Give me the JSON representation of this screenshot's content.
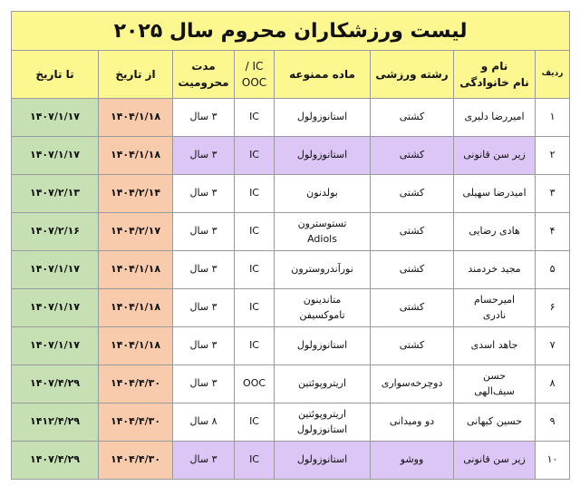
{
  "title": "لیست ورزشکاران محروم سال ۲۰۲۵",
  "headers": {
    "row_no": "ردیف",
    "name": "نام و\nنام خانوادگی",
    "sport": "رشته ورزشی",
    "substance": "ماده ممنوعه",
    "ic_ooc": "IC /\nOOC",
    "duration": "مدت\nمحرومیت",
    "from_date": "از تاریخ",
    "to_date": "تا تاریخ"
  },
  "colors": {
    "title_bg": "#fdf78f",
    "to_date_bg": "#c6e0b4",
    "from_date_bg": "#f8cbad",
    "highlight_bg": "#dcc6f5"
  },
  "rows": [
    {
      "no": "۱",
      "name": "امیررضا دلیری",
      "sport": "کشتی",
      "substance": "استانوزولول",
      "ic": "IC",
      "duration": "۳ سال",
      "from": "۱۴۰۴/۱/۱۸",
      "to": "۱۴۰۷/۱/۱۷",
      "highlight": false
    },
    {
      "no": "۲",
      "name": "زیر سن قانونی",
      "sport": "کشتی",
      "substance": "استانوزولول",
      "ic": "IC",
      "duration": "۳ سال",
      "from": "۱۴۰۴/۱/۱۸",
      "to": "۱۴۰۷/۱/۱۷",
      "highlight": true
    },
    {
      "no": "۳",
      "name": "امیدرضا سهیلی",
      "sport": "کشتی",
      "substance": "بولدنون",
      "ic": "IC",
      "duration": "۳ سال",
      "from": "۱۴۰۴/۲/۱۴",
      "to": "۱۴۰۷/۲/۱۳",
      "highlight": false
    },
    {
      "no": "۴",
      "name": "هادی رضایی",
      "sport": "کشتی",
      "substance": "تستوسترون\nAdiols",
      "ic": "IC",
      "duration": "۳ سال",
      "from": "۱۴۰۴/۲/۱۷",
      "to": "۱۴۰۷/۲/۱۶",
      "highlight": false
    },
    {
      "no": "۵",
      "name": "مجید خردمند",
      "sport": "کشتی",
      "substance": "نورآندروسترون",
      "ic": "IC",
      "duration": "۳ سال",
      "from": "۱۴۰۴/۱/۱۸",
      "to": "۱۴۰۷/۱/۱۷",
      "highlight": false
    },
    {
      "no": "۶",
      "name": "امیرحسام\nنادری",
      "sport": "کشتی",
      "substance": "متاندینون\nتاموکسیفن",
      "ic": "IC",
      "duration": "۳ سال",
      "from": "۱۴۰۴/۱/۱۸",
      "to": "۱۴۰۷/۱/۱۷",
      "highlight": false
    },
    {
      "no": "۷",
      "name": "جاهد اسدی",
      "sport": "کشتی",
      "substance": "استانوزولول",
      "ic": "IC",
      "duration": "۳ سال",
      "from": "۱۴۰۴/۱/۱۸",
      "to": "۱۴۰۷/۱/۱۷",
      "highlight": false
    },
    {
      "no": "۸",
      "name": "حسن\nسیف‌الهی",
      "sport": "دوچرخه‌سواری",
      "substance": "اریتروپوئتین",
      "ic": "OOC",
      "duration": "۳ سال",
      "from": "۱۴۰۴/۴/۳۰",
      "to": "۱۴۰۷/۴/۲۹",
      "highlight": false
    },
    {
      "no": "۹",
      "name": "حسین کیهانی",
      "sport": "دو ومیدانی",
      "substance": "اریتروپوئتین\nاستانوزولول",
      "ic": "IC",
      "duration": "۸ سال",
      "from": "۱۴۰۴/۴/۳۰",
      "to": "۱۴۱۲/۴/۲۹",
      "highlight": false
    },
    {
      "no": "۱۰",
      "name": "زیر سن قانونی",
      "sport": "ووشو",
      "substance": "استانوزولول",
      "ic": "IC",
      "duration": "۳ سال",
      "from": "۱۴۰۴/۴/۳۰",
      "to": "۱۴۰۷/۴/۲۹",
      "highlight": true
    }
  ]
}
